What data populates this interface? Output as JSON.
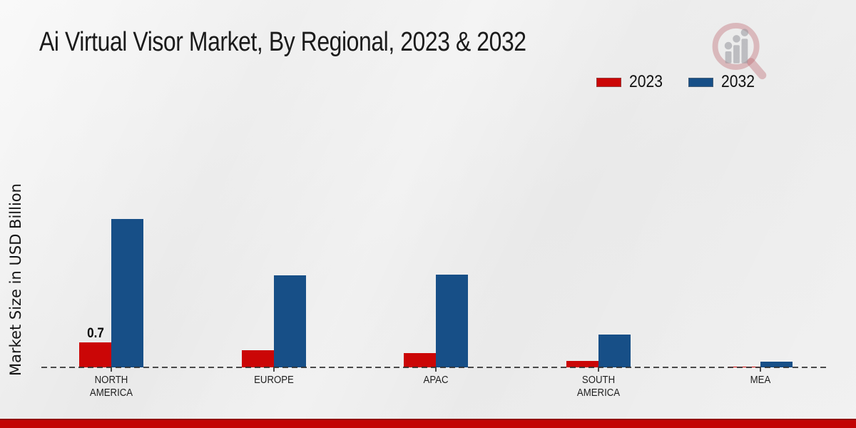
{
  "title": "Ai Virtual Visor Market, By Regional, 2023 & 2032",
  "ylabel": "Market Size in USD Billion",
  "legend": {
    "items": [
      {
        "label": "2023",
        "color": "#cb0606"
      },
      {
        "label": "2032",
        "color": "#174f87"
      }
    ]
  },
  "footer": {
    "bar_color": "#c20404",
    "bar_top_color": "#930f06"
  },
  "watermark": {
    "icon": "magnifier-bar-chart-logo"
  },
  "chart_data": {
    "type": "bar",
    "title": "Ai Virtual Visor Market, By Regional, 2023 & 2032",
    "categories": [
      "NORTH AMERICA",
      "EUROPE",
      "APAC",
      "SOUTH AMERICA",
      "MEA"
    ],
    "series": [
      {
        "name": "2023",
        "color": "#cb0606",
        "values": [
          0.7,
          0.48,
          0.4,
          0.18,
          0.03
        ]
      },
      {
        "name": "2032",
        "color": "#174f87",
        "values": [
          4.16,
          2.58,
          2.6,
          0.92,
          0.17
        ]
      }
    ],
    "xlabel": "",
    "ylabel": "Market Size in USD Billion",
    "ylim": [
      0,
      4.5
    ],
    "grid": false,
    "legend_position": "top-right",
    "baseline_style": "dashed",
    "data_labels": [
      {
        "category": "NORTH AMERICA",
        "series": "2023",
        "text": "0.7"
      }
    ]
  }
}
